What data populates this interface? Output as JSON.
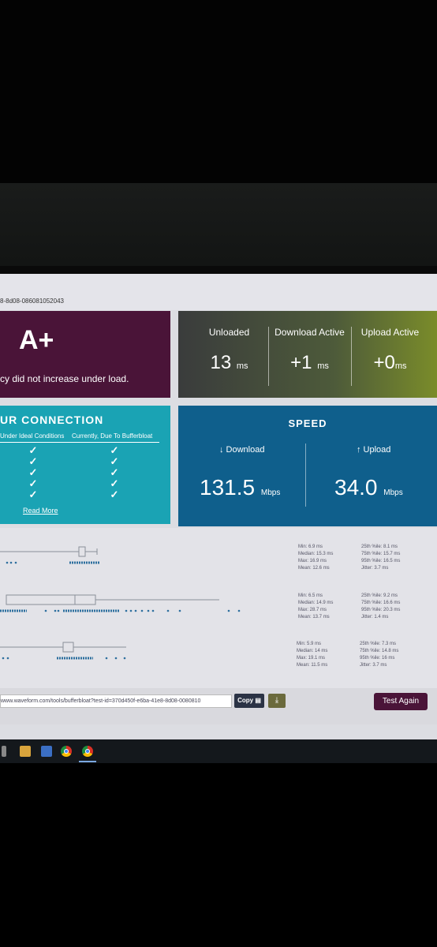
{
  "test_id_fragment": "8-8d08-086081052043",
  "grade": {
    "letter": "A+",
    "summary": "cy did not increase under load."
  },
  "latency": [
    {
      "label": "Unloaded",
      "value": "13",
      "unit": "ms"
    },
    {
      "label": "Download Active",
      "value": "+1",
      "unit": "ms"
    },
    {
      "label": "Upload Active",
      "value": "+0",
      "unit": "ms"
    }
  ],
  "connection": {
    "title": "UR CONNECTION",
    "col_ideal": "Under Ideal Conditions",
    "col_current": "Currently, Due To Bufferbloat",
    "check_glyph": "✓",
    "read_more": "Read More"
  },
  "speed": {
    "title": "SPEED",
    "download_label": "↓ Download",
    "upload_label": "↑ Upload",
    "download_value": "131.5",
    "upload_value": "34.0",
    "unit": "Mbps"
  },
  "latency_stats": [
    {
      "left": [
        "Min: 6.9 ms",
        "Median: 15.3 ms",
        "Max: 16.9 ms",
        "Mean: 12.6 ms"
      ],
      "right": [
        "25th %ile: 8.1 ms",
        "75th %ile: 15.7 ms",
        "95th %ile: 16.5 ms",
        "Jitter: 3.7 ms"
      ]
    },
    {
      "left": [
        "Min: 6.5 ms",
        "Median: 14.9 ms",
        "Max: 28.7 ms",
        "Mean: 13.7 ms"
      ],
      "right": [
        "25th %ile: 9.2 ms",
        "75th %ile: 16.6 ms",
        "95th %ile: 20.3 ms",
        "Jitter: 1.4 ms"
      ]
    },
    {
      "left": [
        "Min: 5.9 ms",
        "Median: 14 ms",
        "Max: 19.1 ms",
        "Mean: 11.5 ms"
      ],
      "right": [
        "25th %ile: 7.3 ms",
        "75th %ile: 14.8 ms",
        "95th %ile: 16 ms",
        "Jitter: 3.7 ms"
      ]
    }
  ],
  "share": {
    "url": "www.waveform.com/tools/bufferbloat?test-id=370d450f-e6ba-41e8-8d08-0080810",
    "copy_label": "Copy",
    "download_icon": "download-icon",
    "test_again": "Test Again"
  },
  "taskbar_icons": [
    "windows-icon",
    "file-explorer-icon",
    "store-icon",
    "mail-icon",
    "chrome-icon",
    "chrome-icon"
  ]
}
